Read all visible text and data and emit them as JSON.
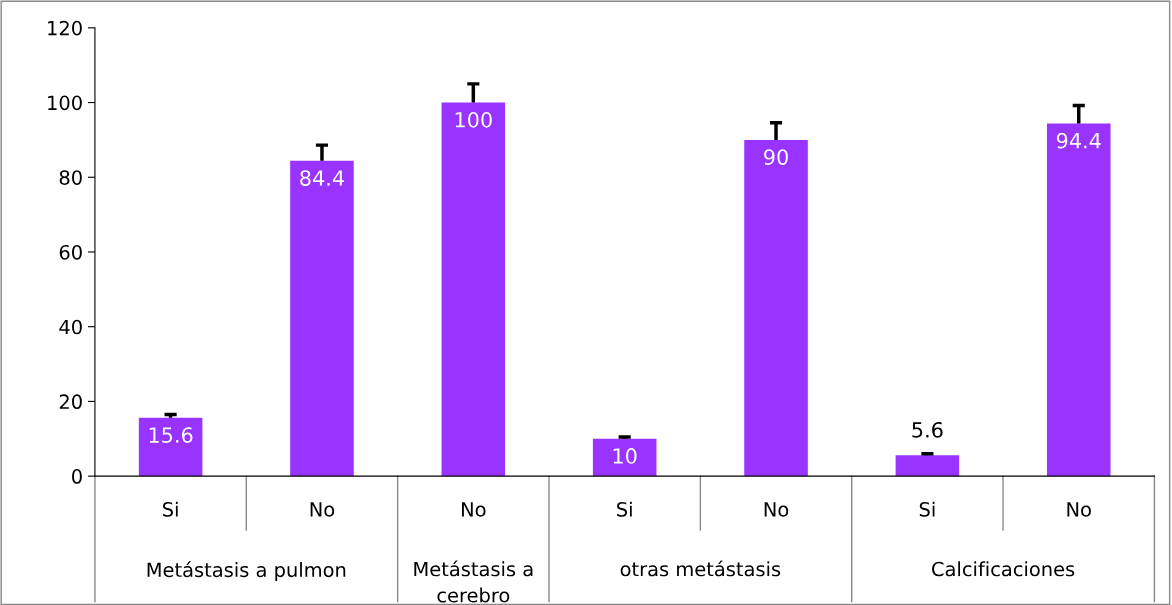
{
  "chart_data": {
    "type": "bar",
    "categories": [
      "Si",
      "No",
      "No",
      "Si",
      "No",
      "Si",
      "No"
    ],
    "values": [
      15.6,
      84.4,
      100,
      10,
      90,
      5.6,
      94.4
    ],
    "errors": [
      [
        15.6,
        16.5
      ],
      [
        84.4,
        88.6
      ],
      [
        100,
        105
      ],
      [
        10,
        10.5
      ],
      [
        90,
        94.6
      ],
      [
        5.6,
        6
      ],
      [
        94.4,
        99.2
      ]
    ],
    "color": "#9933ff",
    "ylim": [
      0,
      120
    ],
    "yticks": [
      0,
      20,
      40,
      60,
      80,
      100,
      120
    ],
    "data_labels": true,
    "grid": false,
    "annotations": [
      "Metástasis a pulmon",
      "Metástasis a cerebro",
      "otras metástasis",
      "Calcificaciones"
    ]
  }
}
